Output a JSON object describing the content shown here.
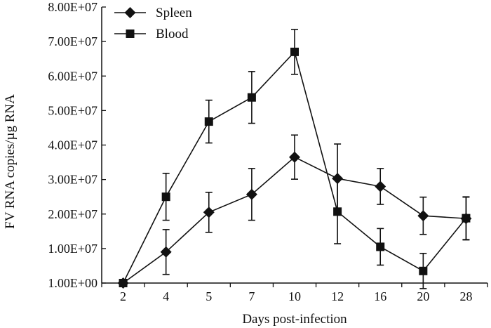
{
  "chart_data": {
    "type": "line",
    "title": "",
    "xlabel": "Days post-infection",
    "ylabel": "FV RNA copies/µg RNA",
    "categories": [
      "2",
      "4",
      "5",
      "7",
      "10",
      "12",
      "16",
      "20",
      "28"
    ],
    "ylim": [
      0,
      80000000
    ],
    "yticks": [
      0,
      10000000,
      20000000,
      30000000,
      40000000,
      50000000,
      60000000,
      70000000,
      80000000
    ],
    "ytick_labels": [
      "1.00E+00",
      "1.00E+07",
      "2.00E+07",
      "3.00E+07",
      "4.00E+07",
      "5.00E+07",
      "6.00E+07",
      "7.00E+07",
      "8.00E+07"
    ],
    "legend_position": "top-left",
    "grid": false,
    "series": [
      {
        "name": "Spleen",
        "marker": "diamond",
        "values": [
          0,
          9000000,
          20500000,
          25700000,
          36500000,
          30300000,
          28000000,
          19500000,
          18700000
        ],
        "errors": [
          0,
          6500000,
          5800000,
          7500000,
          6400000,
          10000000,
          5200000,
          5400000,
          6200000
        ]
      },
      {
        "name": "Blood",
        "marker": "square",
        "values": [
          0,
          25000000,
          46800000,
          53800000,
          67000000,
          20700000,
          10500000,
          3500000,
          18800000
        ],
        "errors": [
          0,
          6800000,
          6200000,
          7500000,
          6500000,
          9300000,
          5300000,
          5100000,
          6200000
        ]
      }
    ],
    "colors": {
      "line": "#111111",
      "axis": "#111111"
    }
  }
}
